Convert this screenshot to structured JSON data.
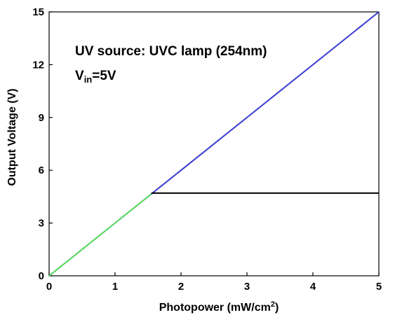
{
  "chart_data": {
    "type": "line",
    "xlabel": "Photopower (mW/cm²)",
    "xlabel_parts": {
      "main": "Photopower (mW/cm",
      "sup": "2",
      "tail": ")"
    },
    "ylabel": "Output Voltage (V)",
    "xlim": [
      0,
      5
    ],
    "ylim": [
      0,
      15
    ],
    "xticks": [
      0,
      1,
      2,
      3,
      4,
      5
    ],
    "yticks": [
      0,
      3,
      6,
      9,
      12,
      15
    ],
    "grid": false,
    "annotations": {
      "source": "UV source: UVC lamp (254nm)",
      "vin_main": "V",
      "vin_sub": "in",
      "vin_tail": "=5V"
    },
    "series": [
      {
        "color": "#3a3acf",
        "x": [
          0,
          5
        ],
        "y": [
          0,
          15
        ]
      },
      {
        "color": "#5ce05c",
        "x": [
          0,
          1.55
        ],
        "y": [
          0,
          4.65
        ]
      },
      {
        "color": "#000000",
        "x": [
          1.55,
          5
        ],
        "y": [
          4.7,
          4.7
        ]
      }
    ]
  }
}
